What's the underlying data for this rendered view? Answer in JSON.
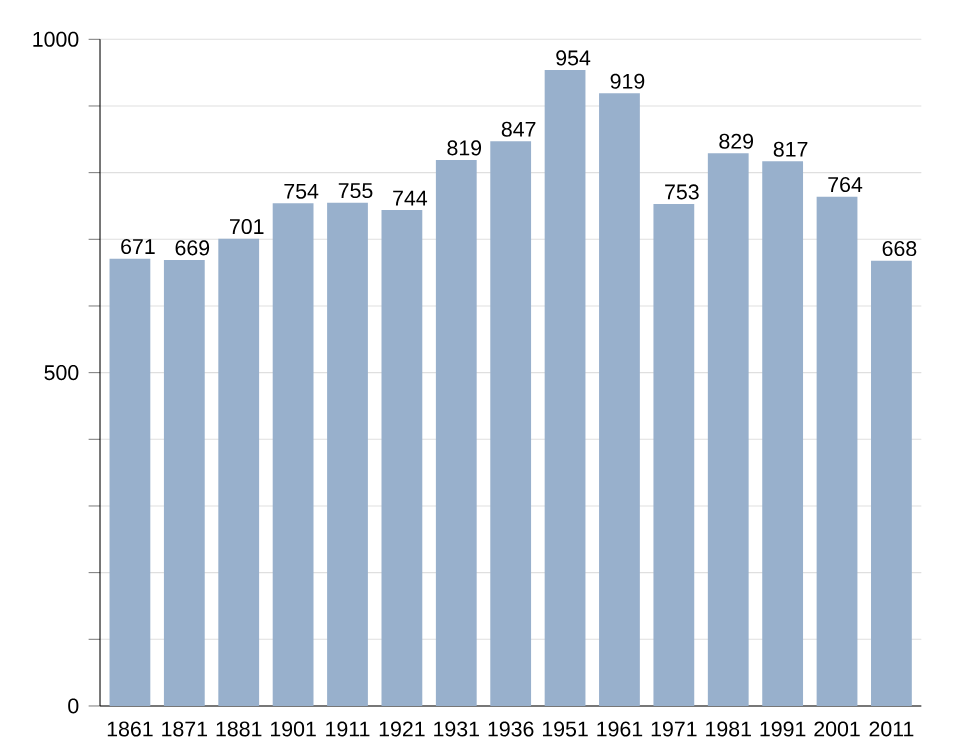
{
  "chart_data": {
    "type": "bar",
    "categories": [
      "1861",
      "1871",
      "1881",
      "1901",
      "1911",
      "1921",
      "1931",
      "1936",
      "1951",
      "1961",
      "1971",
      "1981",
      "1991",
      "2001",
      "2011"
    ],
    "values": [
      671,
      669,
      701,
      754,
      755,
      744,
      819,
      847,
      954,
      919,
      753,
      829,
      817,
      764,
      668
    ],
    "color": "#98b0cc",
    "ylim": [
      0,
      1000
    ],
    "yticks": [
      0,
      {
        "value": 100,
        "label": null
      },
      {
        "value": 200,
        "label": null
      },
      {
        "value": 300,
        "label": null
      },
      {
        "value": 400,
        "label": null
      },
      500,
      {
        "value": 600,
        "label": null
      },
      {
        "value": 700,
        "label": null
      },
      {
        "value": 800,
        "label": null
      },
      {
        "value": 900,
        "label": null
      },
      1000
    ],
    "grid": "y",
    "data_labels": true
  }
}
